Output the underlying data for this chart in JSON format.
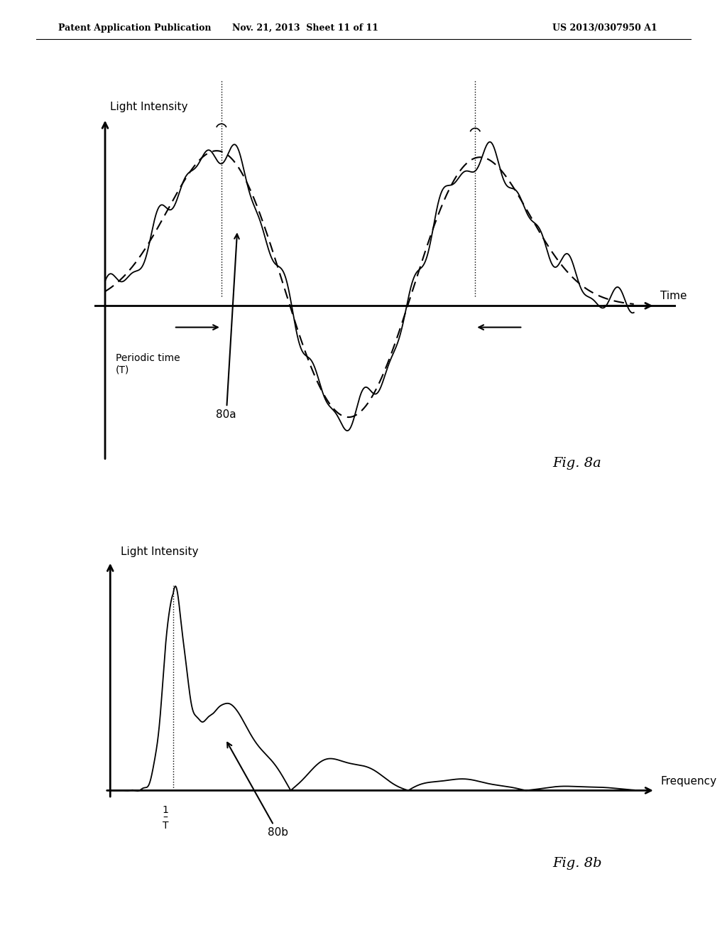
{
  "bg_color": "#ffffff",
  "header_left": "Patent Application Publication",
  "header_mid": "Nov. 21, 2013  Sheet 11 of 11",
  "header_right": "US 2013/0307950 A1",
  "fig8a_label": "Fig. 8a",
  "fig8b_label": "Fig. 8b",
  "label_80a": "80a",
  "label_80b": "80b",
  "label_light_intensity_a": "Light Intensity",
  "label_light_intensity_b": "Light Intensity",
  "label_time": "Time",
  "label_periodic_time": "Periodic time\n(T)",
  "label_frequency": "Frequency",
  "label_1_over_T": "1\n–\nT"
}
